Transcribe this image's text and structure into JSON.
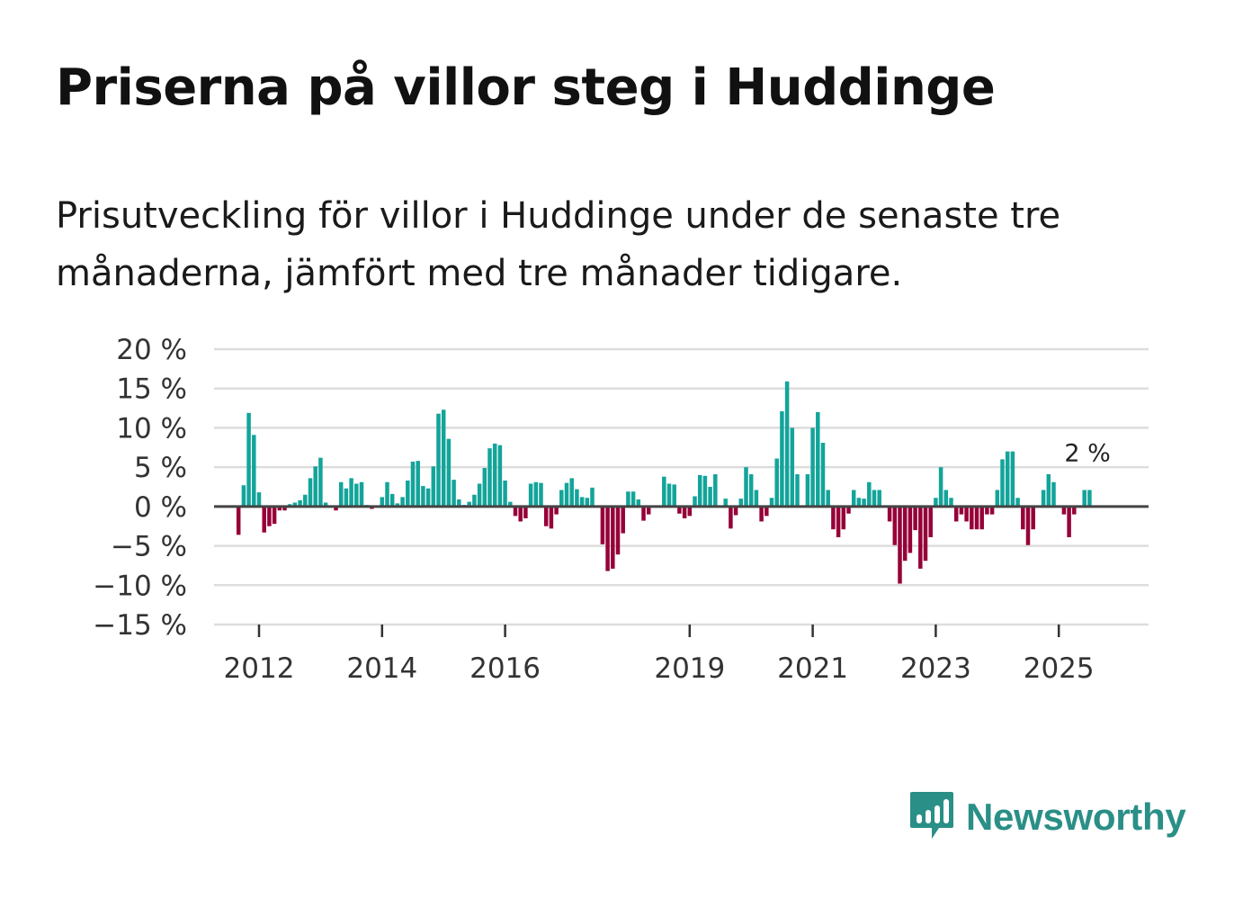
{
  "header": {
    "title": "Priserna på villor steg i Huddinge",
    "subtitle": "Prisutveckling för villor i Huddinge under de senaste tre månaderna, jämfört med tre månader tidigare."
  },
  "brand": {
    "name": "Newsworthy",
    "color": "#2a8f86"
  },
  "colors": {
    "positive": "#13a49a",
    "negative": "#960038",
    "grid": "#dddddd",
    "zero": "#444444"
  },
  "chart_data": {
    "type": "bar",
    "title": "Priserna på villor steg i Huddinge",
    "xlabel": "",
    "ylabel": "",
    "ylim": [
      -15,
      20
    ],
    "yticks": [
      20,
      15,
      10,
      5,
      0,
      -5,
      -10,
      -15
    ],
    "ytick_labels": [
      "20 %",
      "15 %",
      "10 %",
      "5 %",
      "0 %",
      "−5 %",
      "−10 %",
      "−15 %"
    ],
    "xticks": [
      2012,
      2014,
      2016,
      2019,
      2021,
      2023,
      2025
    ],
    "xtick_labels": [
      "2012",
      "2014",
      "2016",
      "2019",
      "2021",
      "2023",
      "2025"
    ],
    "start": {
      "year": 2011,
      "month": 5
    },
    "end_label": "2 %",
    "series": [
      {
        "name": "Prisutveckling",
        "values": [
          0,
          0,
          0,
          0,
          -3.6,
          2.7,
          11.9,
          9.1,
          1.8,
          -3.3,
          -2.5,
          -2.2,
          -0.5,
          -0.5,
          0.3,
          0.5,
          0.8,
          1.5,
          3.6,
          5.1,
          6.2,
          0.5,
          0,
          -0.5,
          3.1,
          2.3,
          3.6,
          2.9,
          3.1,
          0.2,
          -0.3,
          0.1,
          1.2,
          3.1,
          1.6,
          0.4,
          1.2,
          3.3,
          5.7,
          5.8,
          2.6,
          2.3,
          5.1,
          11.8,
          12.3,
          8.6,
          3.4,
          0.9,
          0.2,
          0.6,
          1.5,
          2.9,
          4.9,
          7.4,
          8.0,
          7.8,
          3.3,
          0.6,
          -1.2,
          -1.9,
          -1.5,
          2.9,
          3.1,
          3.0,
          -2.5,
          -2.8,
          -1.0,
          2.1,
          3.0,
          3.6,
          2.2,
          1.2,
          1.1,
          2.4,
          0,
          -4.8,
          -8.2,
          -7.9,
          -6.1,
          -3.4,
          1.9,
          1.9,
          0.9,
          -1.8,
          -1.0,
          0,
          0,
          3.8,
          2.9,
          2.8,
          -0.9,
          -1.5,
          -1.2,
          1.3,
          4.0,
          3.9,
          2.5,
          4.1,
          0,
          1.0,
          -2.8,
          -1.1,
          1.0,
          5.0,
          4.1,
          2.1,
          -1.9,
          -1.2,
          1.1,
          6.1,
          12.1,
          15.9,
          10.0,
          4.1,
          0,
          4.1,
          10.0,
          12.0,
          8.1,
          2.1,
          -2.9,
          -3.9,
          -2.9,
          -0.9,
          2.1,
          1.1,
          1.0,
          3.1,
          2.1,
          2.1,
          0,
          -1.9,
          -4.9,
          -9.8,
          -6.9,
          -5.9,
          -3.0,
          -7.9,
          -6.9,
          -3.9,
          1.1,
          5.0,
          2.1,
          1.1,
          -1.9,
          -1.0,
          -1.9,
          -2.9,
          -2.9,
          -2.9,
          -1.0,
          -1.0,
          2.1,
          6.0,
          7.0,
          7.0,
          1.1,
          -2.9,
          -4.9,
          -2.9,
          0,
          2.1,
          4.1,
          3.1,
          0,
          -1.0,
          -3.9,
          -1.0,
          0,
          2.1,
          2.1
        ]
      }
    ]
  }
}
